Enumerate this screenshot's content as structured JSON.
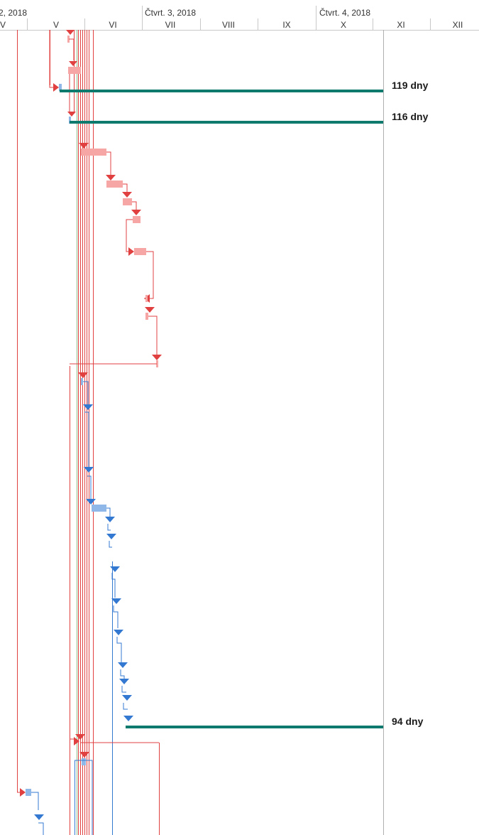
{
  "timescale": {
    "quarters": [
      "2, 2018",
      "Čtvrt. 3, 2018",
      "Čtvrt. 4, 2018"
    ],
    "months": [
      "V",
      "V",
      "VI",
      "VII",
      "VIII",
      "IX",
      "X",
      "XI",
      "XII"
    ]
  },
  "summary_bars": [
    {
      "label": "119 dny"
    },
    {
      "label": "116 dny"
    },
    {
      "label": "94 dny"
    }
  ],
  "colors": {
    "critical": "#e04040",
    "critical_bar": "#f7a6a6",
    "normal": "#3378d1",
    "normal_bar": "#8fb8e8",
    "summary": "#0e7a6e",
    "grid": "#c8c8c8"
  }
}
